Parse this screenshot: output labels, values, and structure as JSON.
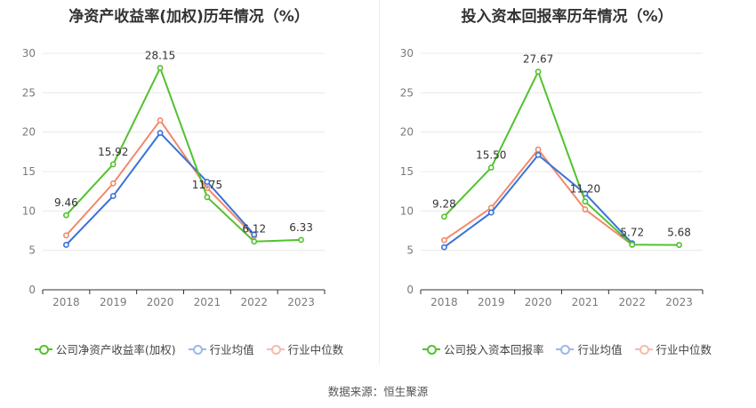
{
  "colors": {
    "company": "#52c22e",
    "avg": "#3a73d9",
    "median": "#f08a6c",
    "grid": "#e8e8e8",
    "axis": "#333333"
  },
  "source": "数据来源：恒生聚源",
  "chart_data": [
    {
      "type": "line",
      "title": "净资产收益率(加权)历年情况（%）",
      "x": [
        "2018",
        "2019",
        "2020",
        "2021",
        "2022",
        "2023"
      ],
      "ylim": [
        0,
        30
      ],
      "yticks": [
        0,
        5,
        10,
        15,
        20,
        25,
        30
      ],
      "series": [
        {
          "name": "公司净资产收益率(加权)",
          "key": "company",
          "values": [
            9.46,
            15.92,
            28.15,
            11.75,
            6.12,
            6.33
          ],
          "labels": [
            "9.46",
            "15.92",
            "28.15",
            "11.75",
            "6.12",
            "6.33"
          ]
        },
        {
          "name": "行业均值",
          "key": "avg",
          "values": [
            5.7,
            11.9,
            19.9,
            13.7,
            7.0,
            null
          ]
        },
        {
          "name": "行业中位数",
          "key": "median",
          "values": [
            6.9,
            13.5,
            21.5,
            12.9,
            6.8,
            null
          ]
        }
      ],
      "grid": true,
      "legend": "bottom"
    },
    {
      "type": "line",
      "title": "投入资本回报率历年情况（%）",
      "x": [
        "2018",
        "2019",
        "2020",
        "2021",
        "2022",
        "2023"
      ],
      "ylim": [
        0,
        30
      ],
      "yticks": [
        0,
        5,
        10,
        15,
        20,
        25,
        30
      ],
      "series": [
        {
          "name": "公司投入资本回报率",
          "key": "company",
          "values": [
            9.28,
            15.5,
            27.67,
            11.2,
            5.72,
            5.68
          ],
          "labels": [
            "9.28",
            "15.50",
            "27.67",
            "11.20",
            "5.72",
            "5.68"
          ]
        },
        {
          "name": "行业均值",
          "key": "avg",
          "values": [
            5.4,
            9.8,
            17.1,
            12.2,
            5.9,
            null
          ]
        },
        {
          "name": "行业中位数",
          "key": "median",
          "values": [
            6.3,
            10.4,
            17.8,
            10.2,
            5.7,
            null
          ]
        }
      ],
      "grid": true,
      "legend": "bottom"
    }
  ]
}
